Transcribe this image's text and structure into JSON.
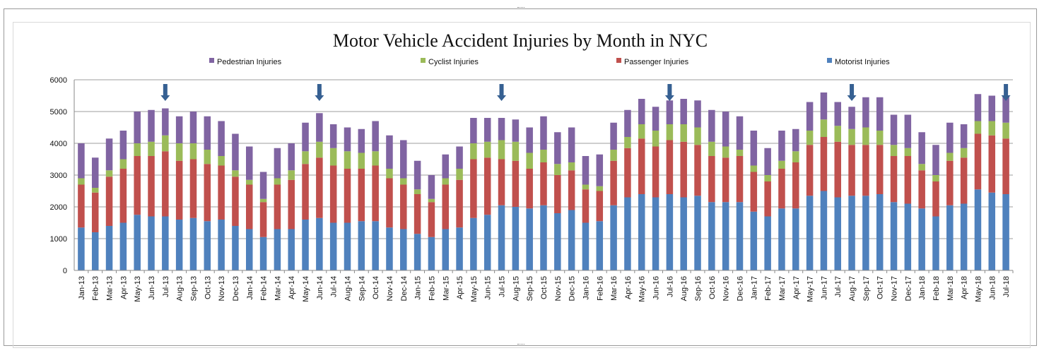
{
  "chart_data": {
    "type": "bar",
    "stacked": true,
    "title": "Motor Vehicle Accident Injuries by Month in NYC",
    "xlabel": "",
    "ylabel": "",
    "ylim": [
      0,
      6000
    ],
    "yticks": [
      "0",
      "1000",
      "2000",
      "3000",
      "4000",
      "5000",
      "6000"
    ],
    "grid": true,
    "legend_position": "top",
    "categories": [
      "Jan-13",
      "Feb-13",
      "Mar-13",
      "Apr-13",
      "May-13",
      "Jun-13",
      "Jul-13",
      "Aug-13",
      "Sep-13",
      "Oct-13",
      "Nov-13",
      "Dec-13",
      "Jan-14",
      "Feb-14",
      "Mar-14",
      "Apr-14",
      "May-14",
      "Jun-14",
      "Jul-14",
      "Aug-14",
      "Sep-14",
      "Oct-14",
      "Nov-14",
      "Dec-14",
      "Jan-15",
      "Feb-15",
      "Mar-15",
      "Apr-15",
      "May-15",
      "Jun-15",
      "Jul-15",
      "Aug-15",
      "Sep-15",
      "Oct-15",
      "Nov-15",
      "Dec-15",
      "Jan-16",
      "Feb-16",
      "Mar-16",
      "Apr-16",
      "May-16",
      "Jun-16",
      "Jul-16",
      "Aug-16",
      "Sep-16",
      "Oct-16",
      "Nov-16",
      "Dec-16",
      "Jan-17",
      "Feb-17",
      "Mar-17",
      "Apr-17",
      "May-17",
      "Jun-17",
      "Jul-17",
      "Aug-17",
      "Sep-17",
      "Oct-17",
      "Nov-17",
      "Dec-17",
      "Jan-18",
      "Feb-18",
      "Mar-18",
      "Apr-18",
      "May-18",
      "Jun-18",
      "Jul-18"
    ],
    "series": [
      {
        "name": "Motorist Injuries",
        "color": "#4f81bd",
        "values": [
          1350,
          1200,
          1400,
          1500,
          1750,
          1700,
          1700,
          1600,
          1650,
          1550,
          1600,
          1400,
          1300,
          1050,
          1300,
          1300,
          1600,
          1650,
          1500,
          1500,
          1550,
          1550,
          1350,
          1300,
          1150,
          1050,
          1300,
          1350,
          1650,
          1750,
          2050,
          2000,
          1950,
          2050,
          1800,
          1900,
          1500,
          1550,
          2050,
          2300,
          2400,
          2300,
          2400,
          2300,
          2350,
          2150,
          2150,
          2150,
          1850,
          1700,
          1950,
          1950,
          2350,
          2500,
          2300,
          2350,
          2350,
          2400,
          2150,
          2100,
          1950,
          1700,
          2050,
          2100,
          2550,
          2450,
          2400
        ]
      },
      {
        "name": "Passenger Injuries",
        "color": "#c0504d",
        "values": [
          1350,
          1250,
          1550,
          1700,
          1850,
          1900,
          2050,
          1850,
          1850,
          1800,
          1700,
          1550,
          1400,
          1100,
          1400,
          1550,
          1750,
          1900,
          1800,
          1700,
          1650,
          1750,
          1550,
          1400,
          1250,
          1100,
          1400,
          1500,
          1850,
          1800,
          1450,
          1450,
          1250,
          1350,
          1200,
          1250,
          1050,
          950,
          1400,
          1550,
          1750,
          1600,
          1700,
          1750,
          1600,
          1450,
          1400,
          1450,
          1250,
          1100,
          1250,
          1450,
          1600,
          1700,
          1750,
          1600,
          1600,
          1550,
          1450,
          1500,
          1200,
          1100,
          1400,
          1450,
          1750,
          1800,
          1750
        ]
      },
      {
        "name": "Cyclist Injuries",
        "color": "#9bbb59",
        "values": [
          200,
          150,
          200,
          300,
          400,
          450,
          500,
          550,
          500,
          450,
          300,
          200,
          150,
          100,
          200,
          300,
          400,
          500,
          550,
          550,
          500,
          450,
          300,
          200,
          150,
          100,
          200,
          350,
          500,
          500,
          600,
          600,
          500,
          400,
          350,
          250,
          150,
          150,
          350,
          350,
          450,
          500,
          500,
          550,
          550,
          450,
          350,
          200,
          200,
          200,
          250,
          350,
          450,
          550,
          500,
          500,
          550,
          450,
          350,
          250,
          200,
          200,
          250,
          300,
          400,
          450,
          500
        ]
      },
      {
        "name": "Pedestrian Injuries",
        "color": "#8064a2",
        "values": [
          1100,
          950,
          1000,
          900,
          1000,
          1000,
          850,
          850,
          1000,
          1050,
          1100,
          1150,
          1050,
          850,
          950,
          850,
          900,
          900,
          750,
          750,
          750,
          950,
          1050,
          1200,
          900,
          750,
          750,
          700,
          800,
          750,
          700,
          700,
          800,
          1050,
          1000,
          1100,
          900,
          1000,
          850,
          850,
          800,
          750,
          750,
          800,
          850,
          1000,
          1100,
          1050,
          1100,
          850,
          950,
          700,
          900,
          850,
          750,
          700,
          950,
          1050,
          950,
          1050,
          1000,
          950,
          950,
          750,
          850,
          800,
          850
        ]
      }
    ],
    "annotations": {
      "type": "arrow",
      "color": "#366092",
      "categories": [
        "Jul-13",
        "Jun-14",
        "Jul-15",
        "Jul-16",
        "Aug-17",
        "Jul-18"
      ]
    }
  }
}
